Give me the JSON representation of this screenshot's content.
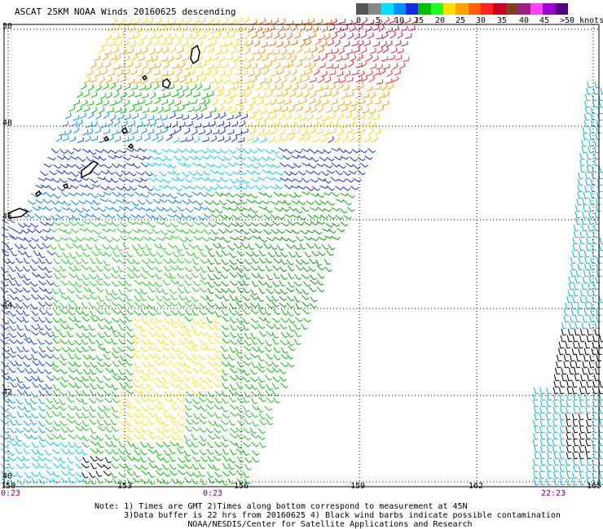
{
  "title": "ASCAT 25KM NOAA Winds 20160625 descending",
  "colorbar": {
    "ticks": [
      "0",
      "5",
      "10",
      "15",
      "20",
      "25",
      "30",
      "35",
      "40",
      "45",
      ">50 knots"
    ],
    "colors": [
      "#555555",
      "#888888",
      "#00e0ff",
      "#0090ff",
      "#1030e0",
      "#00c000",
      "#20ff20",
      "#ffe000",
      "#ffa000",
      "#ff6000",
      "#ff2020",
      "#c80020",
      "#804020",
      "#a02080",
      "#ff40ff",
      "#a000d0",
      "#500080"
    ]
  },
  "axes": {
    "lat_labels": [
      "50",
      "48",
      "46",
      "44",
      "42",
      "40"
    ],
    "lon_labels": [
      "150",
      "153",
      "156",
      "159",
      "162",
      "165"
    ]
  },
  "times": [
    "0:23",
    "0:23",
    "22:23"
  ],
  "notes": [
    "Note: 1) Times are GMT 2)Times along bottom correspond to measurement at 45N",
    "      3)Data buffer is 22 hrs from 20160625 4) Black wind barbs indicate possible contamination",
    "                   NOAA/NESDIS/Center for Satellite Applications and Research"
  ],
  "colors": {
    "grid": "#000000",
    "coast": "#000000",
    "background": "#ffffff",
    "contaminated": "#000000"
  }
}
